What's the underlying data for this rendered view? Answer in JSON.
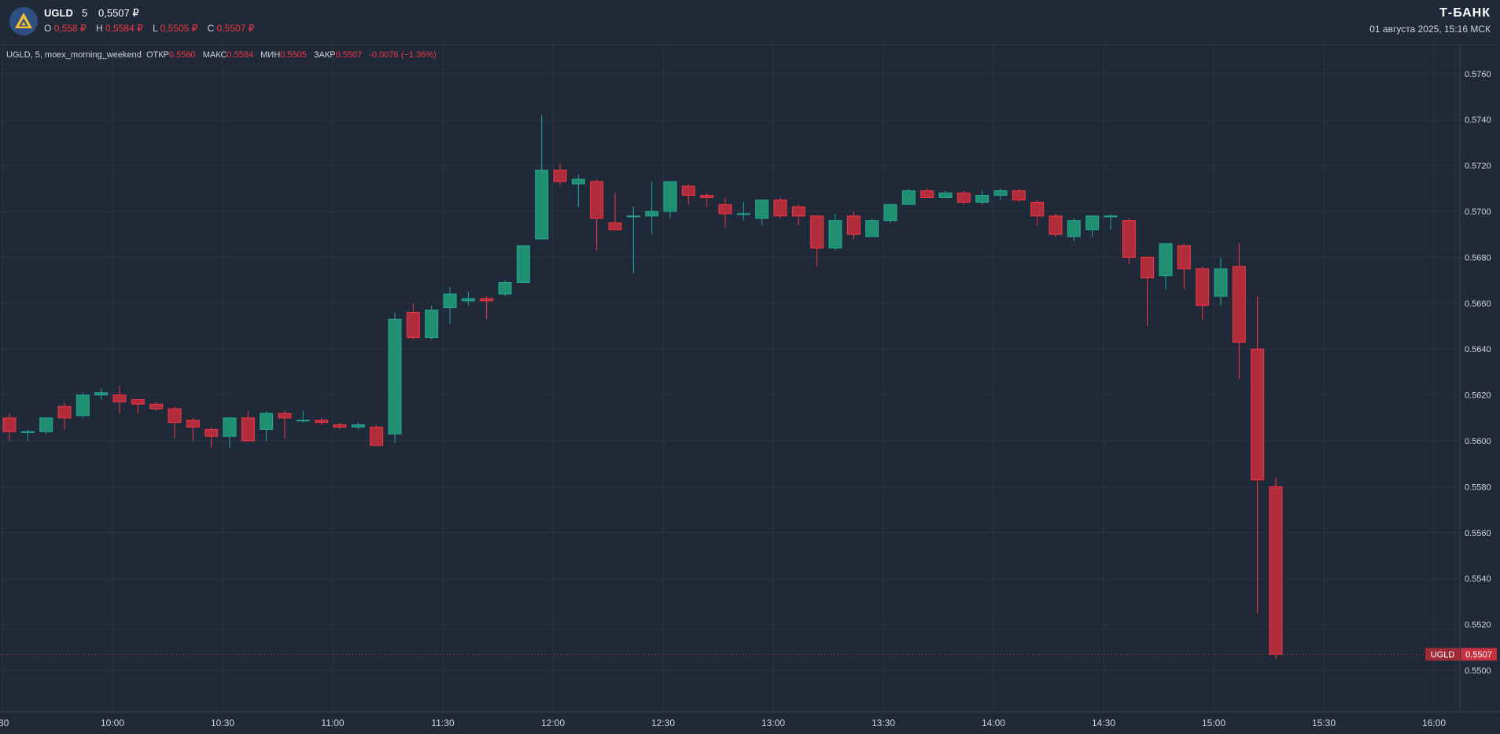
{
  "header": {
    "ticker": "UGLD",
    "interval": "5",
    "price": "0,5507 ₽",
    "ohlc": [
      {
        "key": "O",
        "value": "0,558 ₽"
      },
      {
        "key": "H",
        "value": "0,5584 ₽"
      },
      {
        "key": "L",
        "value": "0,5505 ₽"
      },
      {
        "key": "C",
        "value": "0,5507 ₽"
      }
    ],
    "brand": "Т-БАНК",
    "datetime": "01 августа 2025, 15:16 МСК"
  },
  "legend": {
    "title": "UGLD, 5, moex_morning_weekend",
    "open_label": "ОТКР",
    "open_value": "0.5580",
    "high_label": "МАКС",
    "high_value": "0.5584",
    "low_label": "МИН",
    "low_value": "0.5505",
    "close_label": "ЗАКР",
    "close_value": "0.5507",
    "change": "-0.0076 (−1.36%)"
  },
  "colors": {
    "up": "#26a69a",
    "down": "#f23645",
    "background": "#1f2937",
    "grid": "#2a3441"
  },
  "chart_data": {
    "type": "candlestick",
    "ylim": [
      0.5488,
      0.5768
    ],
    "y_ticks": [
      "0.5760",
      "0.5740",
      "0.5720",
      "0.5700",
      "0.5680",
      "0.5660",
      "0.5640",
      "0.5620",
      "0.5600",
      "0.5580",
      "0.5560",
      "0.5540",
      "0.5520",
      "0.5500"
    ],
    "x_ticks": [
      ":30",
      "10:00",
      "10:30",
      "11:00",
      "11:30",
      "12:00",
      "12:30",
      "13:00",
      "13:30",
      "14:00",
      "14:30",
      "15:00",
      "15:30",
      "16:00"
    ],
    "last_price_label": {
      "ticker": "UGLD",
      "value": "0.5507"
    },
    "time_start": "09:30",
    "interval_minutes": 5,
    "candles": [
      {
        "t": "09:30",
        "o": 0.561,
        "h": 0.5612,
        "l": 0.56,
        "c": 0.5604
      },
      {
        "t": "09:35",
        "o": 0.5604,
        "h": 0.5605,
        "l": 0.56,
        "c": 0.5604
      },
      {
        "t": "09:40",
        "o": 0.5604,
        "h": 0.561,
        "l": 0.5603,
        "c": 0.561
      },
      {
        "t": "09:45",
        "o": 0.5615,
        "h": 0.5617,
        "l": 0.5605,
        "c": 0.561
      },
      {
        "t": "09:50",
        "o": 0.5611,
        "h": 0.5621,
        "l": 0.561,
        "c": 0.562
      },
      {
        "t": "09:55",
        "o": 0.562,
        "h": 0.5623,
        "l": 0.5618,
        "c": 0.5621
      },
      {
        "t": "10:00",
        "o": 0.562,
        "h": 0.5624,
        "l": 0.5612,
        "c": 0.5617
      },
      {
        "t": "10:05",
        "o": 0.5618,
        "h": 0.5618,
        "l": 0.5612,
        "c": 0.5616
      },
      {
        "t": "10:10",
        "o": 0.5616,
        "h": 0.5617,
        "l": 0.5613,
        "c": 0.5614
      },
      {
        "t": "10:15",
        "o": 0.5614,
        "h": 0.5615,
        "l": 0.5601,
        "c": 0.5608
      },
      {
        "t": "10:20",
        "o": 0.5609,
        "h": 0.561,
        "l": 0.56,
        "c": 0.5606
      },
      {
        "t": "10:25",
        "o": 0.5605,
        "h": 0.5606,
        "l": 0.5597,
        "c": 0.5602
      },
      {
        "t": "10:30",
        "o": 0.5602,
        "h": 0.561,
        "l": 0.5597,
        "c": 0.561
      },
      {
        "t": "10:35",
        "o": 0.561,
        "h": 0.5613,
        "l": 0.56,
        "c": 0.56
      },
      {
        "t": "10:40",
        "o": 0.5605,
        "h": 0.5613,
        "l": 0.56,
        "c": 0.5612
      },
      {
        "t": "10:45",
        "o": 0.5612,
        "h": 0.5613,
        "l": 0.5601,
        "c": 0.561
      },
      {
        "t": "10:50",
        "o": 0.5609,
        "h": 0.5613,
        "l": 0.5608,
        "c": 0.5609
      },
      {
        "t": "10:55",
        "o": 0.5609,
        "h": 0.561,
        "l": 0.5607,
        "c": 0.5608
      },
      {
        "t": "11:00",
        "o": 0.5607,
        "h": 0.5608,
        "l": 0.5605,
        "c": 0.5606
      },
      {
        "t": "11:05",
        "o": 0.5606,
        "h": 0.5608,
        "l": 0.5605,
        "c": 0.5607
      },
      {
        "t": "11:10",
        "o": 0.5606,
        "h": 0.5607,
        "l": 0.5598,
        "c": 0.5598
      },
      {
        "t": "11:15",
        "o": 0.5603,
        "h": 0.5656,
        "l": 0.5599,
        "c": 0.5653
      },
      {
        "t": "11:20",
        "o": 0.5656,
        "h": 0.566,
        "l": 0.5644,
        "c": 0.5645
      },
      {
        "t": "11:25",
        "o": 0.5645,
        "h": 0.5659,
        "l": 0.5644,
        "c": 0.5657
      },
      {
        "t": "11:30",
        "o": 0.5658,
        "h": 0.5667,
        "l": 0.5651,
        "c": 0.5664
      },
      {
        "t": "11:35",
        "o": 0.5661,
        "h": 0.5665,
        "l": 0.5659,
        "c": 0.5662
      },
      {
        "t": "11:40",
        "o": 0.5662,
        "h": 0.5663,
        "l": 0.5653,
        "c": 0.5661
      },
      {
        "t": "11:45",
        "o": 0.5664,
        "h": 0.567,
        "l": 0.5663,
        "c": 0.5669
      },
      {
        "t": "11:50",
        "o": 0.5669,
        "h": 0.5685,
        "l": 0.5669,
        "c": 0.5685
      },
      {
        "t": "11:55",
        "o": 0.5688,
        "h": 0.5742,
        "l": 0.5688,
        "c": 0.5718
      },
      {
        "t": "12:00",
        "o": 0.5718,
        "h": 0.5721,
        "l": 0.5711,
        "c": 0.5713
      },
      {
        "t": "12:05",
        "o": 0.5712,
        "h": 0.5716,
        "l": 0.5702,
        "c": 0.5714
      },
      {
        "t": "12:10",
        "o": 0.5713,
        "h": 0.5714,
        "l": 0.5683,
        "c": 0.5697
      },
      {
        "t": "12:15",
        "o": 0.5695,
        "h": 0.5708,
        "l": 0.5692,
        "c": 0.5692
      },
      {
        "t": "12:20",
        "o": 0.5698,
        "h": 0.5702,
        "l": 0.5673,
        "c": 0.5698
      },
      {
        "t": "12:25",
        "o": 0.5698,
        "h": 0.5713,
        "l": 0.569,
        "c": 0.57
      },
      {
        "t": "12:30",
        "o": 0.57,
        "h": 0.5713,
        "l": 0.5697,
        "c": 0.5713
      },
      {
        "t": "12:35",
        "o": 0.5711,
        "h": 0.5712,
        "l": 0.5703,
        "c": 0.5707
      },
      {
        "t": "12:40",
        "o": 0.5707,
        "h": 0.5708,
        "l": 0.5702,
        "c": 0.5706
      },
      {
        "t": "12:45",
        "o": 0.5703,
        "h": 0.5706,
        "l": 0.5693,
        "c": 0.5699
      },
      {
        "t": "12:50",
        "o": 0.5699,
        "h": 0.5704,
        "l": 0.5696,
        "c": 0.5699
      },
      {
        "t": "12:55",
        "o": 0.5697,
        "h": 0.5705,
        "l": 0.5694,
        "c": 0.5705
      },
      {
        "t": "13:00",
        "o": 0.5705,
        "h": 0.5706,
        "l": 0.5697,
        "c": 0.5698
      },
      {
        "t": "13:05",
        "o": 0.5702,
        "h": 0.5703,
        "l": 0.5694,
        "c": 0.5698
      },
      {
        "t": "13:10",
        "o": 0.5698,
        "h": 0.5698,
        "l": 0.5676,
        "c": 0.5684
      },
      {
        "t": "13:15",
        "o": 0.5684,
        "h": 0.5699,
        "l": 0.5683,
        "c": 0.5696
      },
      {
        "t": "13:20",
        "o": 0.5698,
        "h": 0.57,
        "l": 0.5688,
        "c": 0.569
      },
      {
        "t": "13:25",
        "o": 0.5689,
        "h": 0.5697,
        "l": 0.5689,
        "c": 0.5696
      },
      {
        "t": "13:30",
        "o": 0.5696,
        "h": 0.5703,
        "l": 0.5695,
        "c": 0.5703
      },
      {
        "t": "13:35",
        "o": 0.5703,
        "h": 0.571,
        "l": 0.5703,
        "c": 0.5709
      },
      {
        "t": "13:40",
        "o": 0.5709,
        "h": 0.571,
        "l": 0.5706,
        "c": 0.5706
      },
      {
        "t": "13:45",
        "o": 0.5706,
        "h": 0.5709,
        "l": 0.5706,
        "c": 0.5708
      },
      {
        "t": "13:50",
        "o": 0.5708,
        "h": 0.5709,
        "l": 0.5703,
        "c": 0.5704
      },
      {
        "t": "13:55",
        "o": 0.5704,
        "h": 0.5709,
        "l": 0.5703,
        "c": 0.5707
      },
      {
        "t": "14:00",
        "o": 0.5707,
        "h": 0.571,
        "l": 0.5705,
        "c": 0.5709
      },
      {
        "t": "14:05",
        "o": 0.5709,
        "h": 0.571,
        "l": 0.5704,
        "c": 0.5705
      },
      {
        "t": "14:10",
        "o": 0.5704,
        "h": 0.5705,
        "l": 0.5694,
        "c": 0.5698
      },
      {
        "t": "14:15",
        "o": 0.5698,
        "h": 0.5699,
        "l": 0.5689,
        "c": 0.569
      },
      {
        "t": "14:20",
        "o": 0.5689,
        "h": 0.5697,
        "l": 0.5687,
        "c": 0.5696
      },
      {
        "t": "14:25",
        "o": 0.5692,
        "h": 0.5698,
        "l": 0.5689,
        "c": 0.5698
      },
      {
        "t": "14:30",
        "o": 0.5698,
        "h": 0.5699,
        "l": 0.5692,
        "c": 0.5698
      },
      {
        "t": "14:35",
        "o": 0.5696,
        "h": 0.5697,
        "l": 0.5677,
        "c": 0.568
      },
      {
        "t": "14:40",
        "o": 0.568,
        "h": 0.568,
        "l": 0.565,
        "c": 0.5671
      },
      {
        "t": "14:45",
        "o": 0.5672,
        "h": 0.5686,
        "l": 0.5666,
        "c": 0.5686
      },
      {
        "t": "14:50",
        "o": 0.5685,
        "h": 0.5686,
        "l": 0.5666,
        "c": 0.5675
      },
      {
        "t": "14:55",
        "o": 0.5675,
        "h": 0.5676,
        "l": 0.5653,
        "c": 0.5659
      },
      {
        "t": "15:00",
        "o": 0.5663,
        "h": 0.568,
        "l": 0.5659,
        "c": 0.5675
      },
      {
        "t": "15:05",
        "o": 0.5676,
        "h": 0.5686,
        "l": 0.5627,
        "c": 0.5643
      },
      {
        "t": "15:10",
        "o": 0.564,
        "h": 0.5663,
        "l": 0.5525,
        "c": 0.5583
      },
      {
        "t": "15:15",
        "o": 0.558,
        "h": 0.5584,
        "l": 0.5505,
        "c": 0.5507
      }
    ]
  }
}
